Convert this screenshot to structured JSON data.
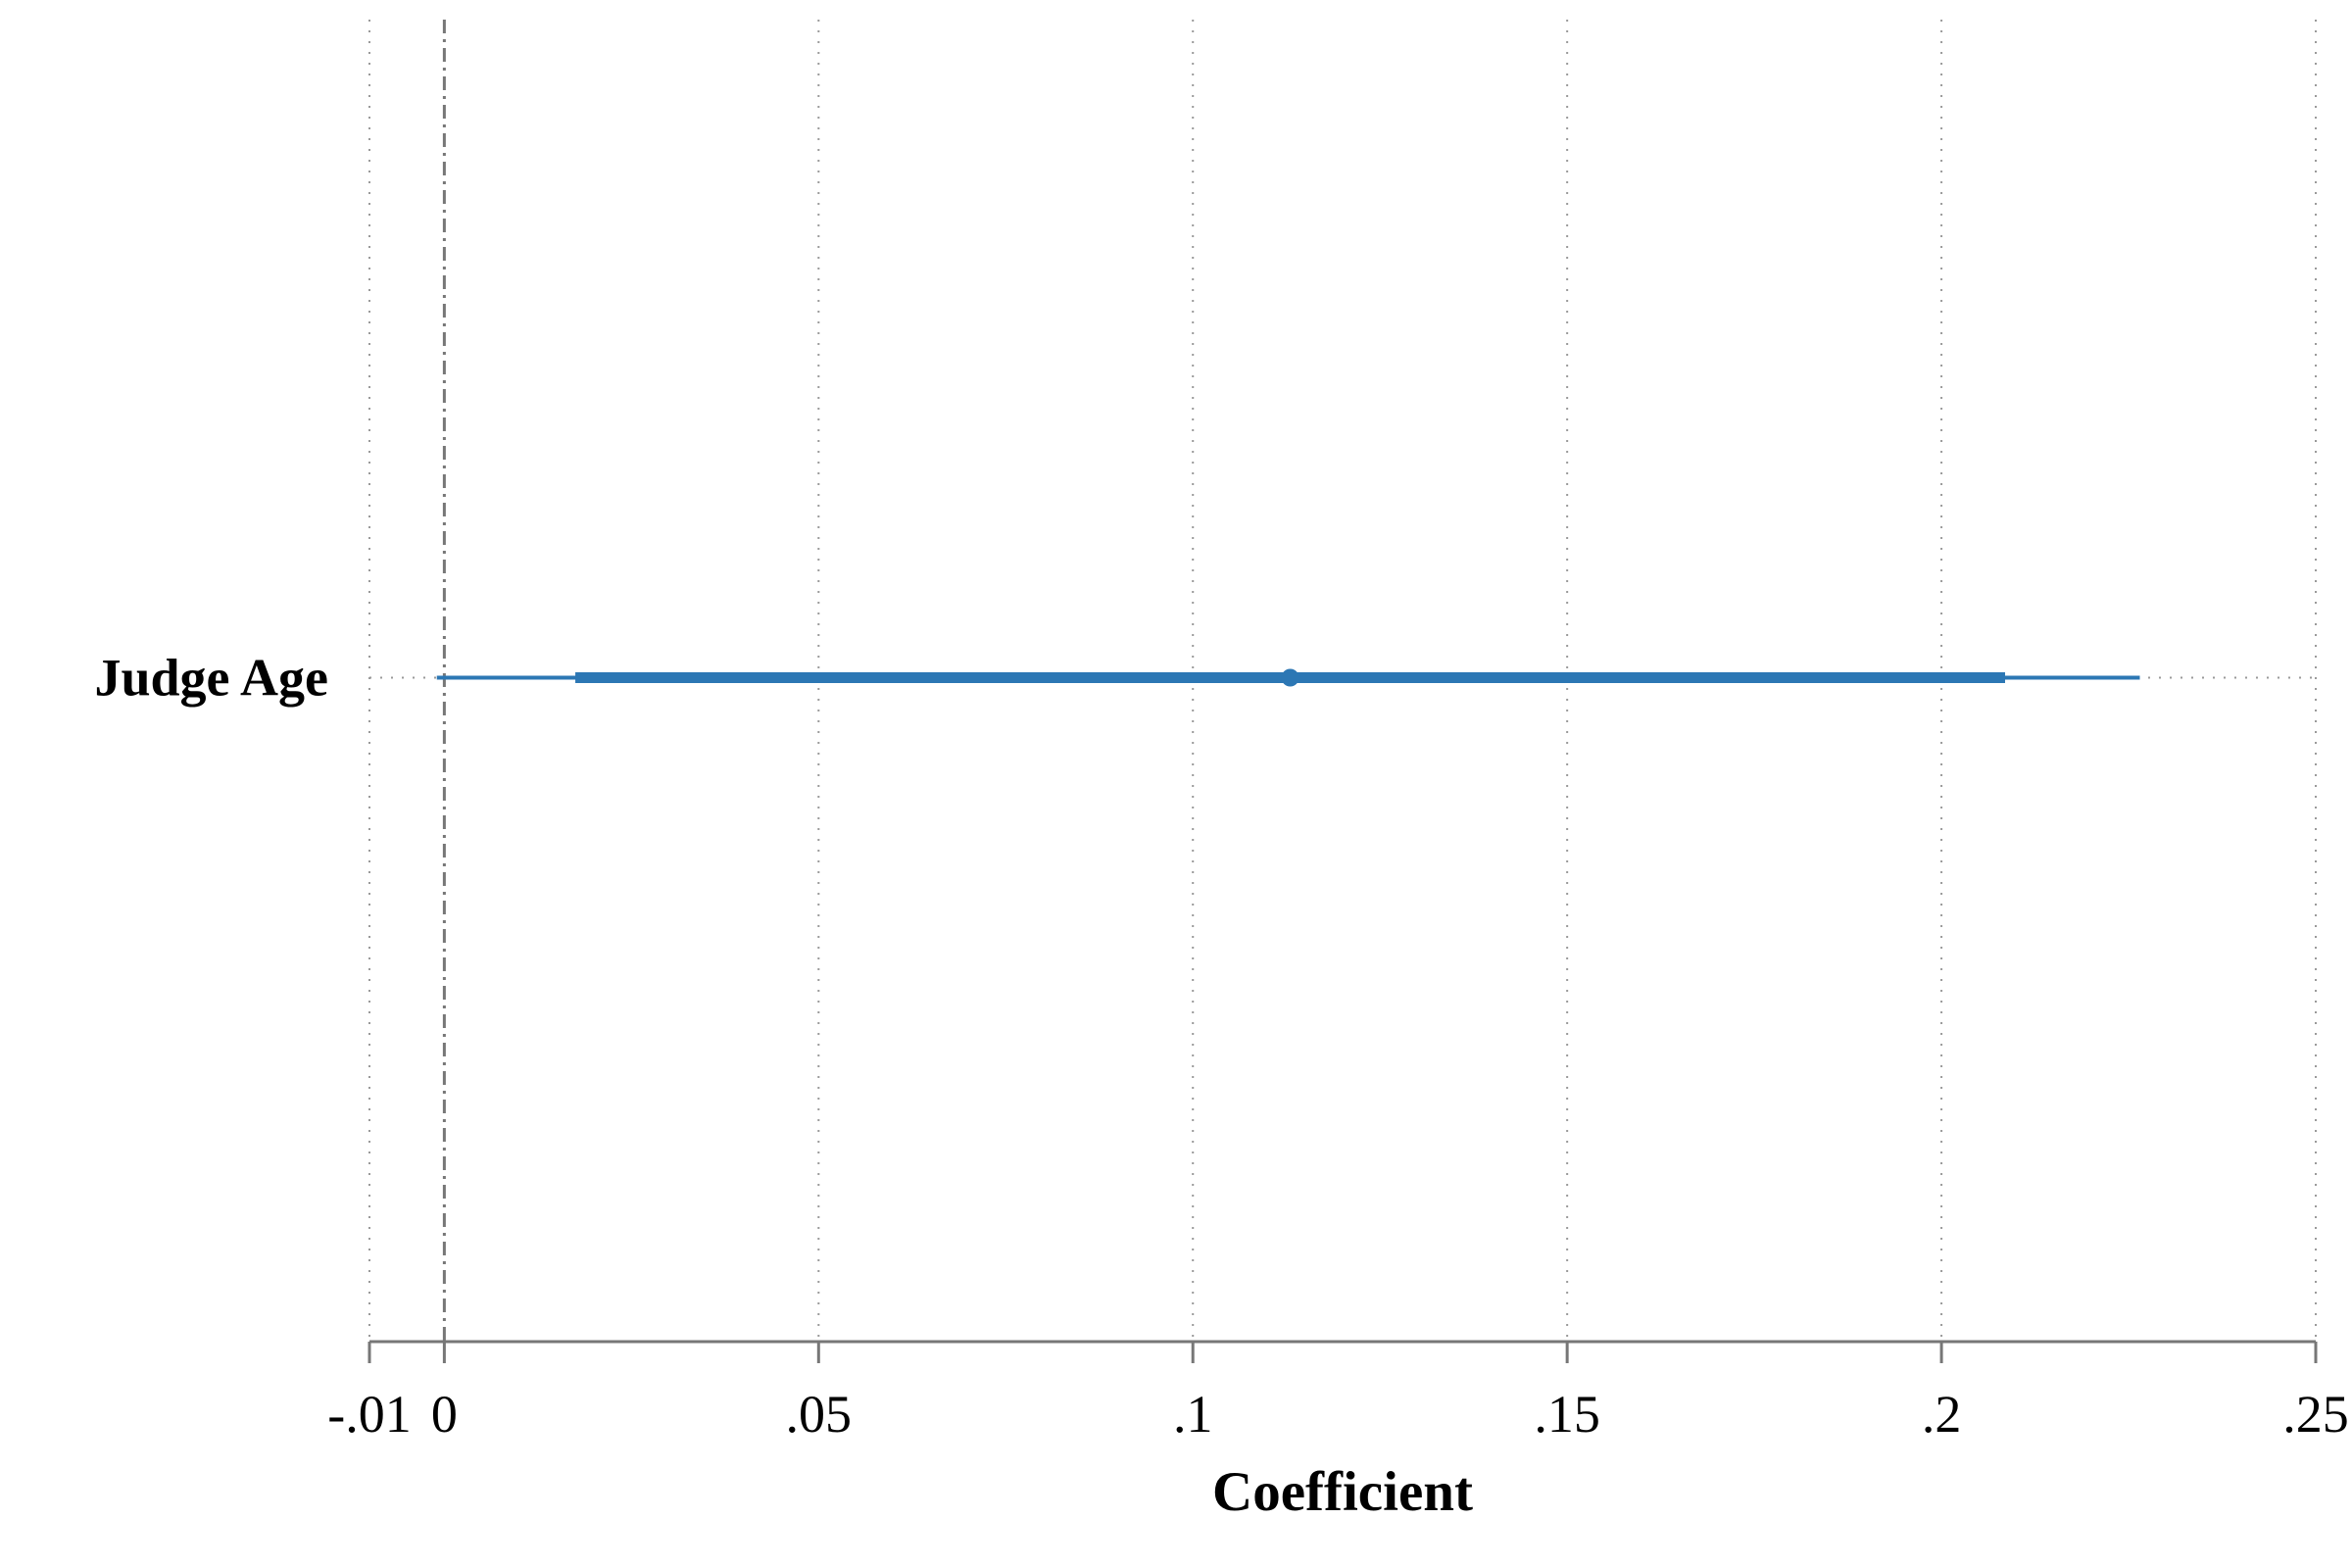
{
  "chart_data": {
    "type": "scatter",
    "subtype": "coefficient-plot",
    "xlabel": "Coefficient",
    "ylabel": "",
    "xlim": [
      -0.01,
      0.25
    ],
    "x_ticks": [
      -0.01,
      0,
      0.05,
      0.1,
      0.15,
      0.2,
      0.25
    ],
    "x_tick_labels": [
      "-.01",
      "0",
      ".05",
      ".1",
      ".15",
      ".2",
      ".25"
    ],
    "reference_line": 0,
    "grid": true,
    "legend": "none",
    "categories": [
      "Judge Age"
    ],
    "estimates": [
      {
        "label": "Judge Age",
        "coef": 0.113,
        "ci_inner": [
          0.0175,
          0.2085
        ],
        "ci_outer": [
          -0.001,
          0.2265
        ]
      }
    ],
    "colors": {
      "series": "#2c77b4",
      "axis": "#777777",
      "grid": "#9a9a9a"
    }
  }
}
